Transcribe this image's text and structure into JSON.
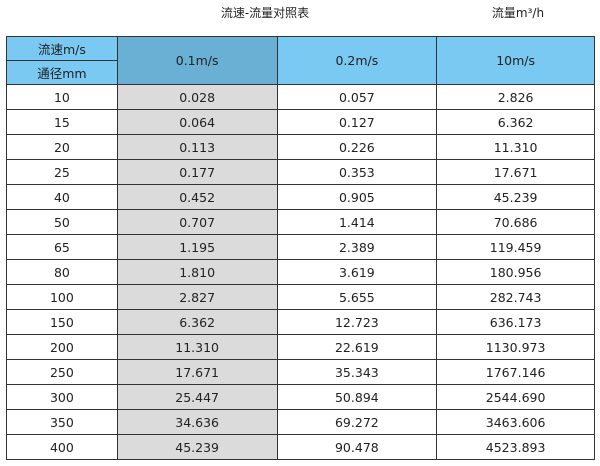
{
  "title": "流速-流量对照表",
  "unit_label": "流量m³/h",
  "header": {
    "velocity_label": "流速m/s",
    "diameter_label": "通径mm",
    "columns": [
      "0.1m/s",
      "0.2m/s",
      "10m/s"
    ]
  },
  "colors": {
    "header": "#79c9f2",
    "highlight_header": "#6ab0d4",
    "highlight_column": "#dbdbdb"
  },
  "rows": [
    {
      "dn": "10",
      "v": [
        "0.028",
        "0.057",
        "2.826"
      ]
    },
    {
      "dn": "15",
      "v": [
        "0.064",
        "0.127",
        "6.362"
      ]
    },
    {
      "dn": "20",
      "v": [
        "0.113",
        "0.226",
        "11.310"
      ]
    },
    {
      "dn": "25",
      "v": [
        "0.177",
        "0.353",
        "17.671"
      ]
    },
    {
      "dn": "40",
      "v": [
        "0.452",
        "0.905",
        "45.239"
      ]
    },
    {
      "dn": "50",
      "v": [
        "0.707",
        "1.414",
        "70.686"
      ]
    },
    {
      "dn": "65",
      "v": [
        "1.195",
        "2.389",
        "119.459"
      ]
    },
    {
      "dn": "80",
      "v": [
        "1.810",
        "3.619",
        "180.956"
      ]
    },
    {
      "dn": "100",
      "v": [
        "2.827",
        "5.655",
        "282.743"
      ]
    },
    {
      "dn": "150",
      "v": [
        "6.362",
        "12.723",
        "636.173"
      ]
    },
    {
      "dn": "200",
      "v": [
        "11.310",
        "22.619",
        "1130.973"
      ]
    },
    {
      "dn": "250",
      "v": [
        "17.671",
        "35.343",
        "1767.146"
      ]
    },
    {
      "dn": "300",
      "v": [
        "25.447",
        "50.894",
        "2544.690"
      ]
    },
    {
      "dn": "350",
      "v": [
        "34.636",
        "69.272",
        "3463.606"
      ]
    },
    {
      "dn": "400",
      "v": [
        "45.239",
        "90.478",
        "4523.893"
      ]
    }
  ]
}
